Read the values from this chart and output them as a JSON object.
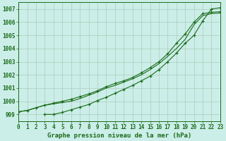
{
  "title": "Graphe pression niveau de la mer (hPa)",
  "bg_color": "#cceee8",
  "grid_color": "#aaccbb",
  "line_color": "#1a6b1a",
  "xmin": 0,
  "xmax": 23,
  "ymin": 998.5,
  "ymax": 1007.5,
  "yticks": [
    999,
    1000,
    1001,
    1002,
    1003,
    1004,
    1005,
    1006,
    1007
  ],
  "xticks": [
    0,
    1,
    2,
    3,
    4,
    5,
    6,
    7,
    8,
    9,
    10,
    11,
    12,
    13,
    14,
    15,
    16,
    17,
    18,
    19,
    20,
    21,
    22,
    23
  ],
  "line1_x": [
    0,
    1,
    2,
    3,
    4,
    5,
    6,
    7,
    8,
    9,
    10,
    11,
    12,
    13,
    14,
    15,
    16,
    17,
    18,
    19,
    20,
    21,
    22,
    23
  ],
  "line1_y": [
    999.2,
    999.3,
    999.5,
    999.7,
    999.8,
    999.9,
    1000.0,
    1000.2,
    1000.45,
    1000.7,
    1001.0,
    1001.2,
    1001.45,
    1001.7,
    1002.0,
    1002.4,
    1002.85,
    1003.4,
    1004.0,
    1004.7,
    1005.8,
    1006.5,
    1006.65,
    1006.7
  ],
  "line2_x": [
    0,
    1,
    2,
    3,
    4,
    5,
    6,
    7,
    8,
    9,
    10,
    11,
    12,
    13,
    14,
    15,
    16,
    17,
    18,
    19,
    20,
    21,
    22,
    23
  ],
  "line2_y": [
    999.2,
    999.3,
    999.5,
    999.7,
    999.85,
    1000.0,
    1000.15,
    1000.35,
    1000.55,
    1000.8,
    1001.1,
    1001.35,
    1001.55,
    1001.8,
    1002.15,
    1002.55,
    1003.0,
    1003.6,
    1004.4,
    1005.1,
    1006.0,
    1006.65,
    1006.75,
    1006.8
  ],
  "line3_x": [
    3,
    4,
    5,
    6,
    7,
    8,
    9,
    10,
    11,
    12,
    13,
    14,
    15,
    16,
    17,
    18,
    19,
    20,
    21,
    22,
    23
  ],
  "line3_y": [
    999.0,
    999.0,
    999.15,
    999.35,
    999.55,
    999.75,
    1000.05,
    1000.3,
    1000.6,
    1000.9,
    1001.2,
    1001.55,
    1001.9,
    1002.4,
    1003.0,
    1003.65,
    1004.4,
    1005.0,
    1006.1,
    1007.0,
    1007.1
  ]
}
